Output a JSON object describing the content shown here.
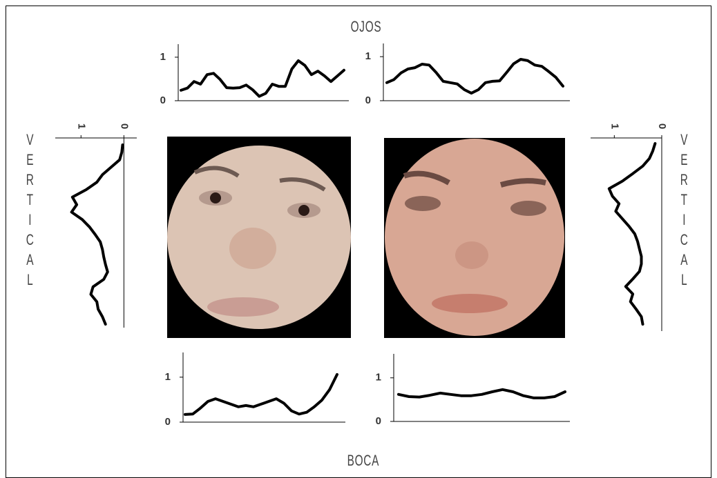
{
  "labels": {
    "top": "OJOS",
    "bottom": "BOCA",
    "left": "VERTICAL",
    "right": "VERTICAL"
  },
  "chart_data": [
    {
      "type": "line",
      "color": "#000000",
      "ylim": [
        0,
        1.3
      ],
      "yticks": [
        0,
        1
      ],
      "values": [
        0.24,
        0.29,
        0.44,
        0.38,
        0.6,
        0.63,
        0.49,
        0.3,
        0.29,
        0.3,
        0.36,
        0.25,
        0.1,
        0.17,
        0.38,
        0.33,
        0.33,
        0.73,
        0.92,
        0.81,
        0.6,
        0.68,
        0.57,
        0.44,
        0.57,
        0.7
      ]
    },
    {
      "type": "line",
      "color": "#000000",
      "ylim": [
        0,
        1.3
      ],
      "yticks": [
        0,
        1
      ],
      "values": [
        0.41,
        0.48,
        0.63,
        0.72,
        0.75,
        0.83,
        0.81,
        0.64,
        0.44,
        0.41,
        0.38,
        0.25,
        0.17,
        0.25,
        0.41,
        0.44,
        0.45,
        0.64,
        0.84,
        0.94,
        0.91,
        0.81,
        0.78,
        0.66,
        0.53,
        0.33
      ]
    },
    {
      "type": "line",
      "color": "#000000",
      "ylim": [
        0,
        1.55
      ],
      "yticks": [
        0,
        1
      ],
      "values": [
        0.17,
        0.18,
        0.31,
        0.46,
        0.52,
        0.46,
        0.4,
        0.34,
        0.37,
        0.34,
        0.4,
        0.46,
        0.52,
        0.42,
        0.25,
        0.18,
        0.22,
        0.34,
        0.49,
        0.72,
        1.06
      ]
    },
    {
      "type": "line",
      "color": "#000000",
      "ylim": [
        0,
        1.55
      ],
      "yticks": [
        0,
        1
      ],
      "values": [
        0.62,
        0.57,
        0.56,
        0.6,
        0.65,
        0.62,
        0.59,
        0.59,
        0.62,
        0.68,
        0.73,
        0.68,
        0.59,
        0.54,
        0.54,
        0.57,
        0.68
      ]
    },
    {
      "type": "line",
      "color": "#000000",
      "xlim": [
        1.6,
        -0.3
      ],
      "xticks": [
        1,
        0
      ],
      "values": [
        0.03,
        0.05,
        0.1,
        0.3,
        0.5,
        0.63,
        0.88,
        1.2,
        1.1,
        1.22,
        0.97,
        0.8,
        0.67,
        0.55,
        0.5,
        0.47,
        0.43,
        0.38,
        0.47,
        0.72,
        0.77,
        0.63,
        0.6,
        0.5,
        0.43
      ]
    },
    {
      "type": "line",
      "color": "#000000",
      "xlim": [
        1.5,
        0
      ],
      "xticks": [
        1,
        0
      ],
      "values": [
        0.14,
        0.19,
        0.26,
        0.4,
        0.61,
        0.83,
        1.11,
        1.04,
        0.9,
        0.97,
        0.83,
        0.69,
        0.57,
        0.51,
        0.47,
        0.43,
        0.43,
        0.47,
        0.61,
        0.76,
        0.61,
        0.66,
        0.54,
        0.43,
        0.4
      ]
    }
  ]
}
